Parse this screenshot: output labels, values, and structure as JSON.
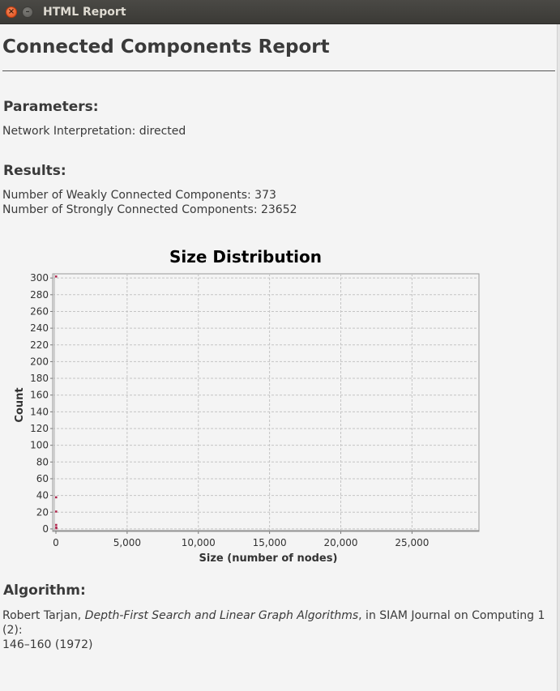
{
  "window": {
    "title": "HTML Report"
  },
  "report": {
    "title": "Connected Components Report",
    "parameters_heading": "Parameters:",
    "network_interpretation": "Network Interpretation: directed",
    "results_heading": "Results:",
    "weak_components": "Number of Weakly Connected Components: 373",
    "strong_components": "Number of Strongly Connected Components: 23652",
    "algorithm_heading": "Algorithm:",
    "citation": {
      "author": "Robert Tarjan, ",
      "work": "Depth-First Search and Linear Graph Algorithms",
      "venue": ", in SIAM Journal on Computing 1 (2):",
      "pages": "146–160 (1972)"
    }
  },
  "chart_data": {
    "type": "scatter",
    "title": "Size Distribution",
    "xlabel": "Size (number of nodes)",
    "ylabel": "Count",
    "xlim": [
      0,
      29700
    ],
    "ylim": [
      -3,
      305
    ],
    "xticks": [
      0,
      5000,
      10000,
      15000,
      20000,
      25000
    ],
    "xtick_labels": [
      "0",
      "5,000",
      "10,000",
      "15,000",
      "20,000",
      "25,000"
    ],
    "yticks": [
      0,
      20,
      40,
      60,
      80,
      100,
      120,
      140,
      160,
      180,
      200,
      220,
      240,
      260,
      280,
      300
    ],
    "grid": true,
    "marker_color": "#b0224a",
    "points": [
      {
        "x": 1,
        "y": 302
      },
      {
        "x": 2,
        "y": 38
      },
      {
        "x": 3,
        "y": 21
      },
      {
        "x": 5,
        "y": 5
      },
      {
        "x": 9,
        "y": 2
      },
      {
        "x": 15,
        "y": 1
      }
    ]
  }
}
